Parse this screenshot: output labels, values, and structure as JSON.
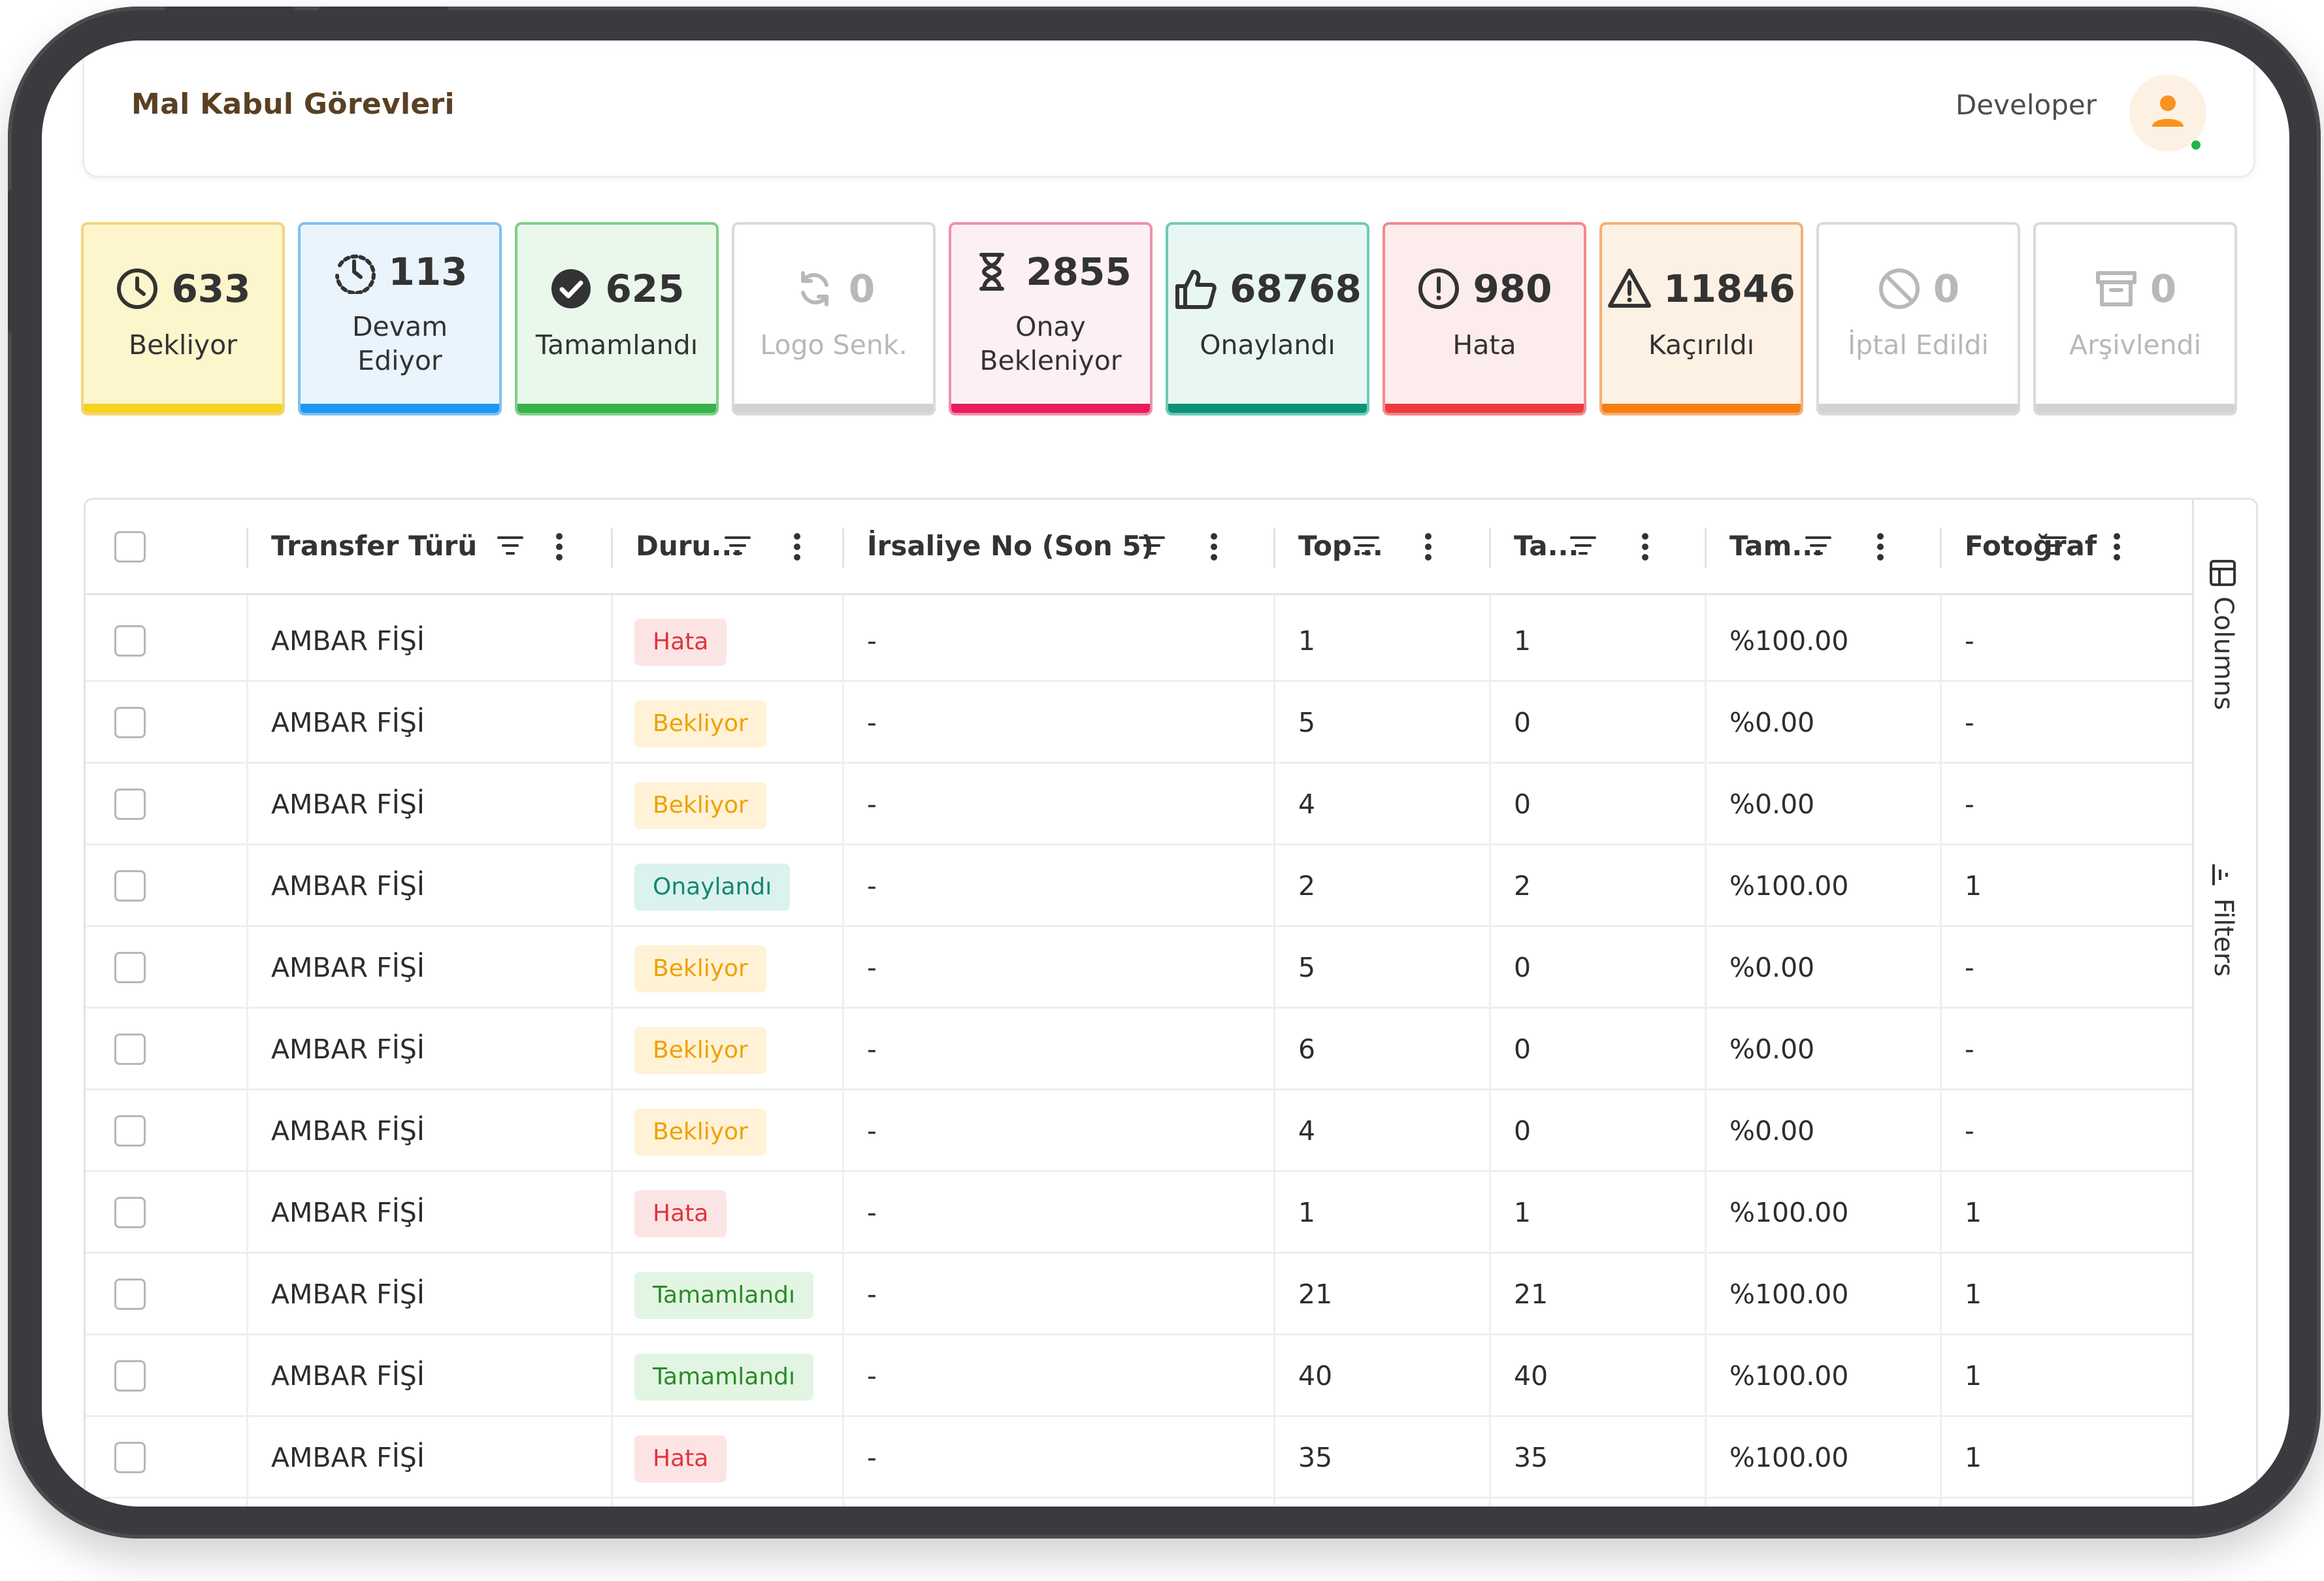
{
  "header": {
    "title": "Mal Kabul Görevleri",
    "user_role": "Developer"
  },
  "status_cards": [
    {
      "count": "633",
      "label": "Bekliyor",
      "icon": "clock-icon",
      "bg": "#fdf5cc",
      "border": "#f3d57a",
      "bar": "#f5d321",
      "text": "#333333"
    },
    {
      "count": "113",
      "label": "Devam Ediyor",
      "icon": "clock-history-icon",
      "bg": "#eaf4fd",
      "border": "#7cc1f3",
      "bar": "#1e96f0",
      "text": "#333333"
    },
    {
      "count": "625",
      "label": "Tamamlandı",
      "icon": "check-circle-icon",
      "bg": "#eaf8ec",
      "border": "#7fcf86",
      "bar": "#38b24a",
      "text": "#333333"
    },
    {
      "count": "0",
      "label": "Logo Senk.",
      "icon": "sync-icon",
      "bg": "#ffffff",
      "border": "#dadada",
      "bar": "#d2d2d2",
      "text": "#b8b8b8"
    },
    {
      "count": "2855",
      "label": "Onay Bekleniyor",
      "icon": "hourglass-icon",
      "bg": "#fdf0f4",
      "border": "#ef8fae",
      "bar": "#e81c5c",
      "text": "#333333"
    },
    {
      "count": "68768",
      "label": "Onaylandı",
      "icon": "thumbs-up-icon",
      "bg": "#e8f7f4",
      "border": "#6ccbb7",
      "bar": "#0d9277",
      "text": "#333333"
    },
    {
      "count": "980",
      "label": "Hata",
      "icon": "error-circle-icon",
      "bg": "#fdecec",
      "border": "#f2898c",
      "bar": "#ee3a3e",
      "text": "#333333"
    },
    {
      "count": "11846",
      "label": "Kaçırıldı",
      "icon": "warning-triangle-icon",
      "bg": "#fdf1e4",
      "border": "#f6b075",
      "bar": "#f77e10",
      "text": "#333333"
    },
    {
      "count": "0",
      "label": "İptal Edildi",
      "icon": "cancel-icon",
      "bg": "#ffffff",
      "border": "#dadada",
      "bar": "#d2d2d2",
      "text": "#b8b8b8"
    },
    {
      "count": "0",
      "label": "Arşivlendi",
      "icon": "archive-icon",
      "bg": "#ffffff",
      "border": "#dadada",
      "bar": "#d2d2d2",
      "text": "#b8b8b8"
    }
  ],
  "table": {
    "columns": [
      "Transfer Türü",
      "Duru...",
      "İrsaliye No (Son 5)",
      "Top...",
      "Ta...",
      "Tam...",
      "Fotoğraf"
    ],
    "rows": [
      {
        "type": "AMBAR FİŞİ",
        "status": "Hata",
        "status_kind": "hata",
        "irsaliye": "-",
        "total": "1",
        "done": "1",
        "percent": "%100.00",
        "photo": "-"
      },
      {
        "type": "AMBAR FİŞİ",
        "status": "Bekliyor",
        "status_kind": "bekliyor",
        "irsaliye": "-",
        "total": "5",
        "done": "0",
        "percent": "%0.00",
        "photo": "-"
      },
      {
        "type": "AMBAR FİŞİ",
        "status": "Bekliyor",
        "status_kind": "bekliyor",
        "irsaliye": "-",
        "total": "4",
        "done": "0",
        "percent": "%0.00",
        "photo": "-"
      },
      {
        "type": "AMBAR FİŞİ",
        "status": "Onaylandı",
        "status_kind": "onaylandi",
        "irsaliye": "-",
        "total": "2",
        "done": "2",
        "percent": "%100.00",
        "photo": "1"
      },
      {
        "type": "AMBAR FİŞİ",
        "status": "Bekliyor",
        "status_kind": "bekliyor",
        "irsaliye": "-",
        "total": "5",
        "done": "0",
        "percent": "%0.00",
        "photo": "-"
      },
      {
        "type": "AMBAR FİŞİ",
        "status": "Bekliyor",
        "status_kind": "bekliyor",
        "irsaliye": "-",
        "total": "6",
        "done": "0",
        "percent": "%0.00",
        "photo": "-"
      },
      {
        "type": "AMBAR FİŞİ",
        "status": "Bekliyor",
        "status_kind": "bekliyor",
        "irsaliye": "-",
        "total": "4",
        "done": "0",
        "percent": "%0.00",
        "photo": "-"
      },
      {
        "type": "AMBAR FİŞİ",
        "status": "Hata",
        "status_kind": "hata",
        "irsaliye": "-",
        "total": "1",
        "done": "1",
        "percent": "%100.00",
        "photo": "1"
      },
      {
        "type": "AMBAR FİŞİ",
        "status": "Tamamlandı",
        "status_kind": "tamamlandi",
        "irsaliye": "-",
        "total": "21",
        "done": "21",
        "percent": "%100.00",
        "photo": "1"
      },
      {
        "type": "AMBAR FİŞİ",
        "status": "Tamamlandı",
        "status_kind": "tamamlandi",
        "irsaliye": "-",
        "total": "40",
        "done": "40",
        "percent": "%100.00",
        "photo": "1"
      },
      {
        "type": "AMBAR FİŞİ",
        "status": "Hata",
        "status_kind": "hata",
        "irsaliye": "-",
        "total": "35",
        "done": "35",
        "percent": "%100.00",
        "photo": "1"
      }
    ]
  },
  "side_panel": {
    "columns_label": "Columns",
    "filters_label": "Filters"
  }
}
